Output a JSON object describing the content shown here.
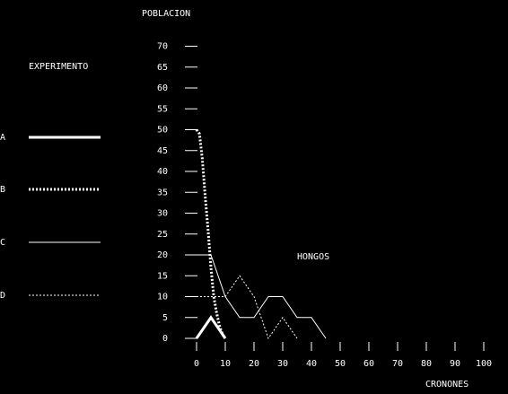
{
  "chart_data": {
    "type": "line",
    "ylabel": "POBLACION",
    "xlabel": "CRONONES",
    "annotation": "HONGOS",
    "legend": {
      "title": "EXPERIMENTO",
      "placement": "left"
    },
    "yticks": [
      0,
      5,
      10,
      15,
      20,
      25,
      30,
      35,
      40,
      45,
      50,
      55,
      60,
      65,
      70
    ],
    "xticks": [
      0,
      10,
      20,
      30,
      40,
      50,
      60,
      70,
      80,
      90,
      100
    ],
    "ylim": [
      0,
      70
    ],
    "xlim": [
      0,
      100
    ],
    "grid": false,
    "colors": {
      "background": "#000000",
      "foreground": "#ffffff"
    },
    "series": [
      {
        "name": "A",
        "style": "thick-solid",
        "x": [
          0,
          5,
          10
        ],
        "y": [
          0,
          5,
          0
        ]
      },
      {
        "name": "B",
        "style": "thick-dotted",
        "x": [
          0,
          1,
          2,
          3,
          4,
          5,
          6,
          7,
          8,
          9,
          10
        ],
        "y": [
          50,
          49,
          43,
          34,
          26,
          17,
          10,
          6,
          3,
          1,
          0
        ]
      },
      {
        "name": "C",
        "style": "thin-solid",
        "x": [
          0,
          5,
          10,
          15,
          20,
          25,
          30,
          35,
          40,
          45
        ],
        "y": [
          20,
          20,
          10,
          5,
          5,
          10,
          10,
          5,
          5,
          0
        ]
      },
      {
        "name": "D",
        "style": "thin-dotted",
        "x": [
          0,
          5,
          10,
          15,
          20,
          25,
          30,
          35
        ],
        "y": [
          10,
          10,
          10,
          15,
          10,
          0,
          5,
          0
        ]
      }
    ]
  }
}
